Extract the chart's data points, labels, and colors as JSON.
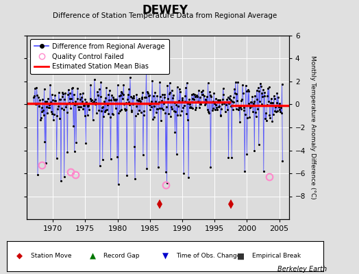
{
  "title": "DEWEY",
  "subtitle": "Difference of Station Temperature Data from Regional Average",
  "ylabel": "Monthly Temperature Anomaly Difference (°C)",
  "xlabel_years": [
    1970,
    1975,
    1980,
    1985,
    1990,
    1995,
    2000,
    2005
  ],
  "ylim": [
    -10,
    6
  ],
  "yticks": [
    -8,
    -6,
    -4,
    -2,
    0,
    2,
    4,
    6
  ],
  "xmin": 1966.0,
  "xmax": 2006.5,
  "bg_color": "#e0e0e0",
  "plot_bg_color": "#dcdcdc",
  "grid_color": "#ffffff",
  "line_color": "#4444ff",
  "marker_color": "#000000",
  "bias_color": "#ff0000",
  "qc_color": "#ff88cc",
  "station_move_color": "#cc0000",
  "station_move_years": [
    1986.5,
    1997.5
  ],
  "bias_segments": [
    {
      "x": [
        1966.0,
        1986.5
      ],
      "y": [
        0.1,
        0.1
      ]
    },
    {
      "x": [
        1986.5,
        1997.5
      ],
      "y": [
        0.2,
        0.2
      ]
    },
    {
      "x": [
        1997.5,
        2006.5
      ],
      "y": [
        -0.1,
        -0.1
      ]
    }
  ],
  "qc_failed_points": [
    [
      1968.25,
      -5.3
    ],
    [
      1972.75,
      -5.9
    ],
    [
      1973.5,
      -6.1
    ],
    [
      1987.5,
      -7.0
    ],
    [
      2003.5,
      -6.3
    ]
  ],
  "footer": "Berkeley Earth",
  "seed": 42,
  "months_start": 1967.0,
  "months_end": 2005.5
}
